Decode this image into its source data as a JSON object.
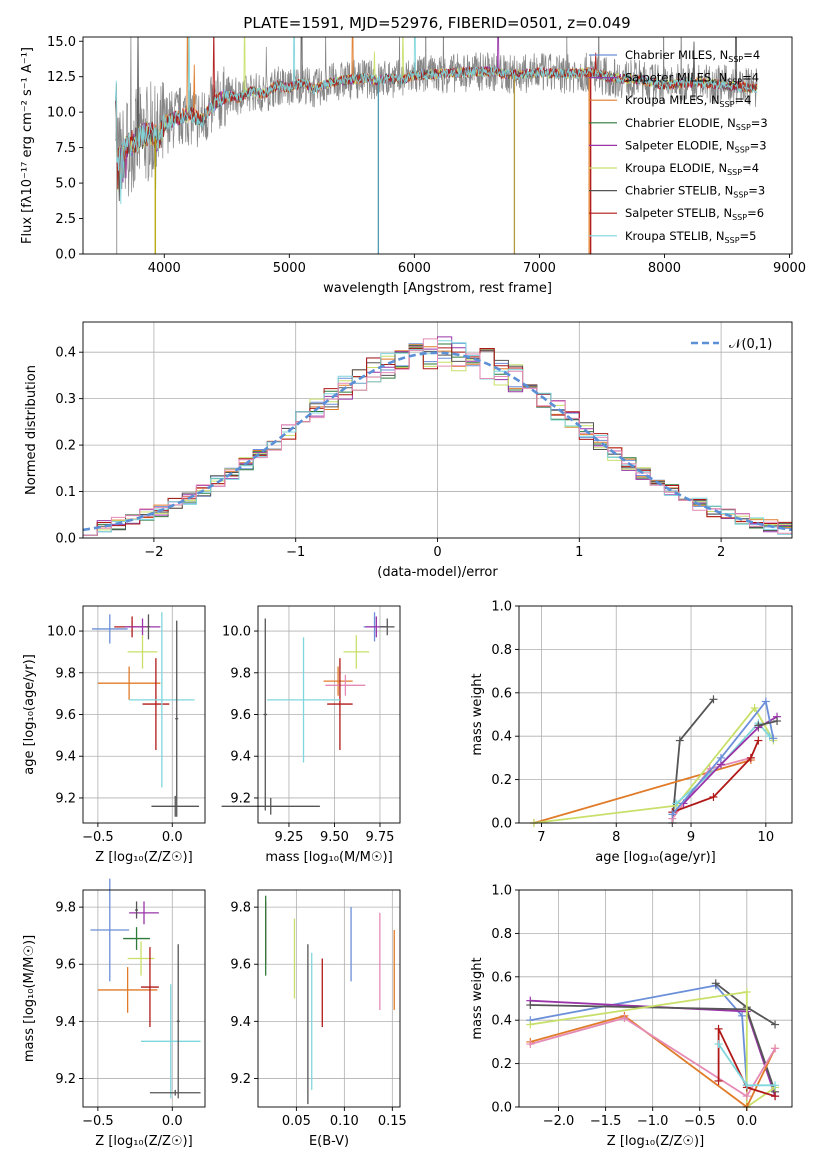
{
  "title": "PLATE=1591, MJD=52976, FIBERID=0501, z=0.049",
  "colors": {
    "Chabrier MILES": "#6b8fd8",
    "Salpeter MILES": "#8b3fa8",
    "Kroupa MILES": "#e07b2a",
    "Chabrier ELODIE": "#2f7a3a",
    "Salpeter ELODIE": "#9a34a8",
    "Kroupa ELODIE": "#c8e06a",
    "Chabrier STELIB": "#555555",
    "Salpeter STELIB": "#b01818",
    "Kroupa STELIB": "#7fd6dc",
    "pink": "#e58ab5",
    "gray": "#7f7f7f",
    "normal": "#5b8fd6"
  },
  "chart_data": [
    {
      "id": "spectrum",
      "type": "line",
      "title": "PLATE=1591, MJD=52976, FIBERID=0501, z=0.049",
      "xlabel": "wavelength [Angstrom, rest frame]",
      "ylabel": "Flux [fλ10⁻¹⁷ erg cm⁻² s⁻¹ A⁻¹]",
      "xlim": [
        3350,
        9020
      ],
      "ylim": [
        0,
        15.3
      ],
      "xticks": [
        "4000",
        "5000",
        "6000",
        "7000",
        "8000",
        "9000"
      ],
      "yticks": [
        "0.0",
        "2.5",
        "5.0",
        "7.5",
        "10.0",
        "12.5",
        "15.0"
      ],
      "legend_position": "top-right",
      "legend": [
        {
          "label": "Chabrier MILES, N",
          "sub": "SSP",
          "val": "=4"
        },
        {
          "label": "Salpeter MILES, N",
          "sub": "SSP",
          "val": "=4"
        },
        {
          "label": "Kroupa MILES, N",
          "sub": "SSP",
          "val": "=4"
        },
        {
          "label": "Chabrier ELODIE, N",
          "sub": "SSP",
          "val": "=3"
        },
        {
          "label": "Salpeter ELODIE, N",
          "sub": "SSP",
          "val": "=3"
        },
        {
          "label": "Kroupa ELODIE, N",
          "sub": "SSP",
          "val": "=4"
        },
        {
          "label": "Chabrier STELIB, N",
          "sub": "SSP",
          "val": "=3"
        },
        {
          "label": "Salpeter STELIB, N",
          "sub": "SSP",
          "val": "=6"
        },
        {
          "label": "Kroupa STELIB, N",
          "sub": "SSP",
          "val": "=5"
        }
      ],
      "continuum": [
        [
          3620,
          6.4
        ],
        [
          3700,
          7.6
        ],
        [
          3800,
          8.2
        ],
        [
          3900,
          8.6
        ],
        [
          3950,
          7.9
        ],
        [
          4000,
          9.2
        ],
        [
          4100,
          9.6
        ],
        [
          4200,
          9.9
        ],
        [
          4300,
          9.4
        ],
        [
          4400,
          10.6
        ],
        [
          4500,
          11.2
        ],
        [
          4600,
          11.0
        ],
        [
          4700,
          11.5
        ],
        [
          4800,
          11.3
        ],
        [
          4900,
          11.9
        ],
        [
          5000,
          11.7
        ],
        [
          5100,
          12.1
        ],
        [
          5200,
          11.6
        ],
        [
          5300,
          12.0
        ],
        [
          5400,
          12.2
        ],
        [
          5500,
          12.3
        ],
        [
          5600,
          12.4
        ],
        [
          5700,
          12.2
        ],
        [
          5800,
          12.4
        ],
        [
          5900,
          12.3
        ],
        [
          6000,
          12.6
        ],
        [
          6200,
          12.7
        ],
        [
          6400,
          12.8
        ],
        [
          6600,
          12.9
        ],
        [
          6800,
          12.6
        ],
        [
          7000,
          12.8
        ],
        [
          7200,
          12.7
        ],
        [
          7400,
          12.8
        ],
        [
          7600,
          12.4
        ],
        [
          7800,
          12.3
        ],
        [
          8000,
          11.9
        ],
        [
          8200,
          12.1
        ],
        [
          8400,
          12.0
        ],
        [
          8600,
          11.8
        ],
        [
          8700,
          11.7
        ]
      ],
      "data_extent": [
        3610,
        8740
      ],
      "drop_lines": [
        {
          "x": 3928,
          "color": "#b5a400"
        },
        {
          "x": 5712,
          "color": "#4f9ab0"
        },
        {
          "x": 6800,
          "color": "#b39a40"
        },
        {
          "x": 7398,
          "color": "#e07b2a"
        },
        {
          "x": 7410,
          "color": "#b01818"
        }
      ]
    },
    {
      "id": "residuals",
      "type": "histogram",
      "xlabel": "(data-model)/error",
      "ylabel": "Normed distribution",
      "xlim": [
        -2.5,
        2.5
      ],
      "ylim": [
        0,
        0.465
      ],
      "xticks": [
        "−2",
        "−1",
        "0",
        "1",
        "2"
      ],
      "yticks": [
        "0.0",
        "0.1",
        "0.2",
        "0.3",
        "0.4"
      ],
      "legend": "𝒩(0,1)",
      "legend_position": "top-right",
      "bin_width": 0.1
    },
    {
      "id": "age_vs_Z",
      "type": "scatter",
      "xlabel": "Z [log₁₀(Z/Z☉)]",
      "ylabel": "age  [log₁₀(age/yr)]",
      "xlim": [
        -0.6,
        0.22
      ],
      "ylim": [
        9.08,
        10.12
      ],
      "xticks": [
        "−0.5",
        "0.0"
      ],
      "yticks": [
        "9.2",
        "9.4",
        "9.6",
        "9.8",
        "10.0"
      ],
      "points": [
        {
          "x": -0.42,
          "y": 10.01,
          "ex": 0.12,
          "ey": 0.07,
          "c": "#6b8fd8"
        },
        {
          "x": -0.27,
          "y": 10.02,
          "ex": 0.12,
          "ey": 0.05,
          "c": "#b01818"
        },
        {
          "x": -0.2,
          "y": 10.02,
          "ex": 0.12,
          "ey": 0.04,
          "c": "#9a34a8"
        },
        {
          "x": -0.2,
          "y": 9.9,
          "ex": 0.1,
          "ey": 0.08,
          "c": "#c8e06a"
        },
        {
          "x": -0.29,
          "y": 9.75,
          "ex": 0.21,
          "ey": 0.08,
          "c": "#e07b2a"
        },
        {
          "x": -0.11,
          "y": 9.65,
          "ex": 0.09,
          "ey": 0.22,
          "c": "#b01818"
        },
        {
          "x": -0.07,
          "y": 9.67,
          "ex": 0.22,
          "ey": 0.42,
          "c": "#7fd6dc"
        },
        {
          "x": 0.02,
          "y": 9.16,
          "ex": 0.16,
          "ey": 0.05,
          "c": "#555555"
        },
        {
          "x": 0.03,
          "y": 9.58,
          "ex": 0.01,
          "ey": 0.47,
          "c": "#555555"
        },
        {
          "x": -0.16,
          "y": 10.02,
          "ex": 0.01,
          "ey": 0.06,
          "c": "#555555"
        }
      ]
    },
    {
      "id": "age_vs_mass",
      "type": "scatter",
      "xlabel": "mass [log₁₀(M/M☉)]",
      "ylabel": "",
      "xlim": [
        9.08,
        9.86
      ],
      "ylim": [
        9.08,
        10.12
      ],
      "xticks": [
        "9.25",
        "9.50",
        "9.75"
      ],
      "yticks": [
        "9.2",
        "9.4",
        "9.6",
        "9.8",
        "10.0"
      ],
      "points": [
        {
          "x": 9.72,
          "y": 10.02,
          "ex": 0.06,
          "ey": 0.07,
          "c": "#6b8fd8"
        },
        {
          "x": 9.73,
          "y": 10.02,
          "ex": 0.06,
          "ey": 0.05,
          "c": "#9a34a8"
        },
        {
          "x": 9.62,
          "y": 9.9,
          "ex": 0.07,
          "ey": 0.08,
          "c": "#c8e06a"
        },
        {
          "x": 9.52,
          "y": 9.76,
          "ex": 0.08,
          "ey": 0.07,
          "c": "#e07b2a"
        },
        {
          "x": 9.56,
          "y": 9.74,
          "ex": 0.11,
          "ey": 0.05,
          "c": "#e58ab5"
        },
        {
          "x": 9.53,
          "y": 9.65,
          "ex": 0.07,
          "ey": 0.22,
          "c": "#b01818"
        },
        {
          "x": 9.33,
          "y": 9.67,
          "ex": 0.2,
          "ey": 0.3,
          "c": "#7fd6dc"
        },
        {
          "x": 9.15,
          "y": 9.16,
          "ex": 0.27,
          "ey": 0.04,
          "c": "#555555"
        },
        {
          "x": 9.12,
          "y": 9.6,
          "ex": 0.01,
          "ey": 0.46,
          "c": "#555555"
        },
        {
          "x": 9.79,
          "y": 10.02,
          "ex": 0.04,
          "ey": 0.04,
          "c": "#555555"
        }
      ]
    },
    {
      "id": "weight_vs_age",
      "type": "line",
      "xlabel": "age  [log₁₀(age/yr)]",
      "ylabel": "mass weight",
      "xlim": [
        6.7,
        10.35
      ],
      "ylim": [
        0,
        1.0
      ],
      "xticks": [
        "7",
        "8",
        "9",
        "10"
      ],
      "yticks": [
        "0.0",
        "0.2",
        "0.4",
        "0.6",
        "0.8",
        "1.0"
      ],
      "series": [
        {
          "c": "#555555",
          "x": [
            8.75,
            8.85,
            9.3
          ],
          "y": [
            0.0,
            0.38,
            0.57
          ]
        },
        {
          "c": "#e07b2a",
          "x": [
            6.9,
            9.8
          ],
          "y": [
            0.0,
            0.29
          ]
        },
        {
          "c": "#e58ab5",
          "x": [
            8.75,
            9.25,
            9.8
          ],
          "y": [
            0.02,
            0.25,
            0.3
          ]
        },
        {
          "c": "#c8e06a",
          "x": [
            6.9,
            8.8,
            9.85,
            10.1
          ],
          "y": [
            0.0,
            0.08,
            0.53,
            0.38
          ]
        },
        {
          "c": "#b01818",
          "x": [
            8.75,
            9.3,
            9.8,
            9.9
          ],
          "y": [
            0.05,
            0.12,
            0.3,
            0.38
          ]
        },
        {
          "c": "#7fd6dc",
          "x": [
            8.8,
            9.4,
            9.9,
            10.05
          ],
          "y": [
            0.09,
            0.27,
            0.46,
            0.4
          ]
        },
        {
          "c": "#9a34a8",
          "x": [
            8.9,
            9.4,
            9.9,
            10.15
          ],
          "y": [
            0.09,
            0.27,
            0.44,
            0.49
          ]
        },
        {
          "c": "#6b8fd8",
          "x": [
            8.75,
            9.4,
            10.0,
            10.1
          ],
          "y": [
            0.04,
            0.3,
            0.56,
            0.39
          ]
        },
        {
          "c": "#555555",
          "x": [
            9.9,
            10.15
          ],
          "y": [
            0.45,
            0.47
          ]
        }
      ]
    },
    {
      "id": "mass_vs_Z",
      "type": "scatter",
      "xlabel": "Z [log₁₀(Z/Z☉)]",
      "ylabel": "mass [log₁₀(M/M☉)]",
      "xlim": [
        -0.6,
        0.22
      ],
      "ylim": [
        9.1,
        9.86
      ],
      "xticks": [
        "−0.5",
        "0.0"
      ],
      "yticks": [
        "9.2",
        "9.4",
        "9.6",
        "9.8"
      ],
      "points": [
        {
          "x": -0.42,
          "y": 9.72,
          "ex": 0.13,
          "ey": 0.18,
          "c": "#6b8fd8"
        },
        {
          "x": -0.19,
          "y": 9.78,
          "ex": 0.1,
          "ey": 0.04,
          "c": "#9a34a8"
        },
        {
          "x": -0.24,
          "y": 9.69,
          "ex": 0.09,
          "ey": 0.04,
          "c": "#2f7a3a"
        },
        {
          "x": -0.21,
          "y": 9.62,
          "ex": 0.09,
          "ey": 0.06,
          "c": "#c8e06a"
        },
        {
          "x": -0.3,
          "y": 9.51,
          "ex": 0.2,
          "ey": 0.08,
          "c": "#e07b2a"
        },
        {
          "x": -0.15,
          "y": 9.52,
          "ex": 0.06,
          "ey": 0.14,
          "c": "#b01818"
        },
        {
          "x": -0.01,
          "y": 9.33,
          "ex": 0.2,
          "ey": 0.2,
          "c": "#7fd6dc"
        },
        {
          "x": 0.02,
          "y": 9.15,
          "ex": 0.17,
          "ey": 0.01,
          "c": "#555555"
        },
        {
          "x": 0.04,
          "y": 9.4,
          "ex": 0.01,
          "ey": 0.27,
          "c": "#555555"
        },
        {
          "x": -0.24,
          "y": 9.79,
          "ex": 0.01,
          "ey": 0.03,
          "c": "#555555"
        }
      ]
    },
    {
      "id": "mass_vs_EBV",
      "type": "scatter",
      "xlabel": "E(B-V)",
      "ylabel": "",
      "xlim": [
        0.01,
        0.158
      ],
      "ylim": [
        9.1,
        9.86
      ],
      "xticks": [
        "0.05",
        "0.10",
        "0.15"
      ],
      "yticks": [
        "9.2",
        "9.4",
        "9.6",
        "9.8"
      ],
      "points": [
        {
          "x": 0.018,
          "y": 9.71,
          "ex": 0.0,
          "ey": 0.11,
          "c": "#9a34a8"
        },
        {
          "x": 0.018,
          "y": 9.7,
          "ex": 0.0,
          "ey": 0.14,
          "c": "#2f7a3a"
        },
        {
          "x": 0.048,
          "y": 9.62,
          "ex": 0.0,
          "ey": 0.14,
          "c": "#c8e06a"
        },
        {
          "x": 0.062,
          "y": 9.39,
          "ex": 0.0,
          "ey": 0.28,
          "c": "#555555"
        },
        {
          "x": 0.066,
          "y": 9.4,
          "ex": 0.0,
          "ey": 0.24,
          "c": "#7fd6dc"
        },
        {
          "x": 0.077,
          "y": 9.5,
          "ex": 0.0,
          "ey": 0.12,
          "c": "#b01818"
        },
        {
          "x": 0.107,
          "y": 9.67,
          "ex": 0.0,
          "ey": 0.13,
          "c": "#6b8fd8"
        },
        {
          "x": 0.137,
          "y": 9.61,
          "ex": 0.0,
          "ey": 0.17,
          "c": "#e58ab5"
        },
        {
          "x": 0.152,
          "y": 9.58,
          "ex": 0.0,
          "ey": 0.14,
          "c": "#e07b2a"
        }
      ]
    },
    {
      "id": "weight_vs_Z",
      "type": "line",
      "xlabel": "Z [log₁₀(Z/Z☉)]",
      "ylabel": "mass weight",
      "xlim": [
        -2.42,
        0.48
      ],
      "ylim": [
        0,
        1.0
      ],
      "xticks": [
        "−2.0",
        "−1.5",
        "−1.0",
        "−0.5",
        "0.0"
      ],
      "yticks": [
        "0.0",
        "0.2",
        "0.4",
        "0.6",
        "0.8",
        "1.0"
      ],
      "series": [
        {
          "c": "#6b8fd8",
          "x": [
            -2.3,
            -0.33,
            -0.05,
            0.0
          ],
          "y": [
            0.4,
            0.56,
            0.42,
            0.1
          ]
        },
        {
          "c": "#555555",
          "x": [
            -0.33,
            0.0,
            0.3
          ],
          "y": [
            0.57,
            0.46,
            0.38
          ]
        },
        {
          "c": "#9a34a8",
          "x": [
            -2.3,
            0.0,
            0.3
          ],
          "y": [
            0.49,
            0.44,
            0.05
          ]
        },
        {
          "c": "#555555",
          "x": [
            -2.3,
            0.0,
            0.3
          ],
          "y": [
            0.47,
            0.45,
            0.07
          ]
        },
        {
          "c": "#c8e06a",
          "x": [
            -2.3,
            0.0,
            0.0,
            0.3
          ],
          "y": [
            0.38,
            0.53,
            0.0,
            0.09
          ]
        },
        {
          "c": "#e07b2a",
          "x": [
            -2.3,
            -1.3,
            0.0,
            0.3
          ],
          "y": [
            0.3,
            0.42,
            0.0,
            0.27
          ]
        },
        {
          "c": "#e58ab5",
          "x": [
            -2.3,
            -1.3,
            0.0,
            0.3
          ],
          "y": [
            0.29,
            0.41,
            0.05,
            0.27
          ]
        },
        {
          "c": "#b01818",
          "x": [
            -0.3,
            -0.3,
            0.0,
            0.3
          ],
          "y": [
            0.12,
            0.36,
            0.09,
            0.05
          ]
        },
        {
          "c": "#7fd6dc",
          "x": [
            -0.3,
            0.0,
            0.3
          ],
          "y": [
            0.29,
            0.1,
            0.1
          ]
        }
      ]
    }
  ]
}
